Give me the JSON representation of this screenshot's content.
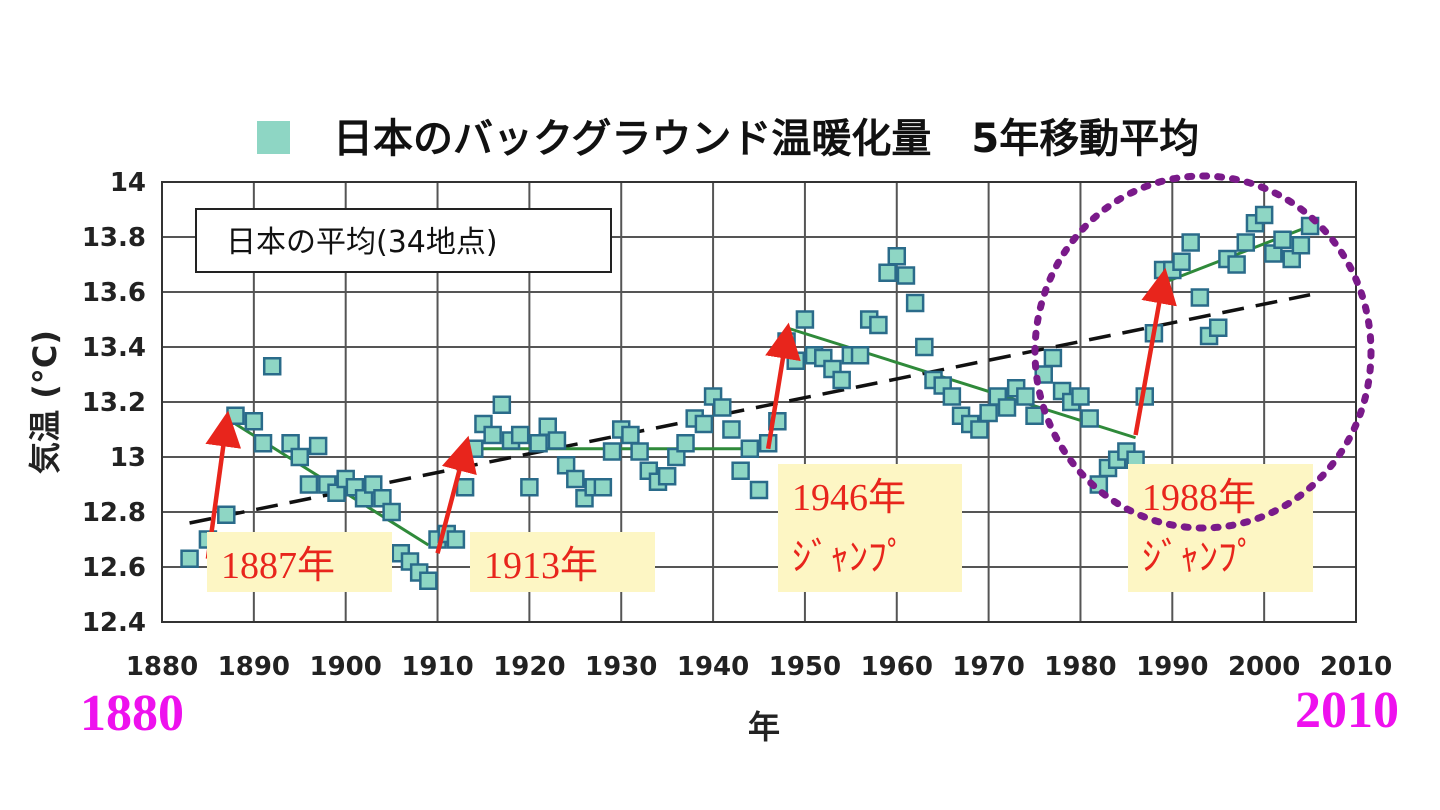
{
  "chart_data": {
    "type": "scatter",
    "title": "日本のバックグラウンド温暖化量　5年移動平均",
    "xlabel": "年",
    "ylabel": "気温 (°C)",
    "xlim": [
      1880,
      2010
    ],
    "ylim": [
      12.4,
      14.0
    ],
    "x_ticks": [
      "1880",
      "1890",
      "1900",
      "1910",
      "1920",
      "1930",
      "1940",
      "1950",
      "1960",
      "1970",
      "1980",
      "1990",
      "2000",
      "2010"
    ],
    "y_ticks": [
      "12.4",
      "12.6",
      "12.8",
      "13",
      "13.2",
      "13.4",
      "13.6",
      "13.8",
      "14"
    ],
    "grid": true,
    "legend_position": "top",
    "marker_color": "#8ed6c4",
    "marker_edge_color": "#2a6b8a",
    "inset_label": "日本の平均(34地点)",
    "left_year_label": "1880",
    "right_year_label": "2010",
    "series": [
      {
        "points": [
          [
            1883,
            12.63
          ],
          [
            1885,
            12.7
          ],
          [
            1887,
            12.79
          ],
          [
            1888,
            13.15
          ],
          [
            1890,
            13.13
          ],
          [
            1891,
            13.05
          ],
          [
            1892,
            13.33
          ],
          [
            1894,
            13.05
          ],
          [
            1895,
            13.0
          ],
          [
            1896,
            12.9
          ],
          [
            1897,
            13.04
          ],
          [
            1898,
            12.9
          ],
          [
            1899,
            12.87
          ],
          [
            1900,
            12.92
          ],
          [
            1901,
            12.89
          ],
          [
            1902,
            12.85
          ],
          [
            1903,
            12.9
          ],
          [
            1904,
            12.85
          ],
          [
            1905,
            12.8
          ],
          [
            1906,
            12.65
          ],
          [
            1907,
            12.62
          ],
          [
            1908,
            12.58
          ],
          [
            1909,
            12.55
          ],
          [
            1910,
            12.7
          ],
          [
            1911,
            12.72
          ],
          [
            1912,
            12.7
          ],
          [
            1913,
            12.89
          ],
          [
            1914,
            13.03
          ],
          [
            1915,
            13.12
          ],
          [
            1916,
            13.08
          ],
          [
            1917,
            13.19
          ],
          [
            1918,
            13.06
          ],
          [
            1919,
            13.08
          ],
          [
            1920,
            12.89
          ],
          [
            1921,
            13.05
          ],
          [
            1922,
            13.11
          ],
          [
            1923,
            13.06
          ],
          [
            1924,
            12.97
          ],
          [
            1925,
            12.92
          ],
          [
            1926,
            12.85
          ],
          [
            1927,
            12.89
          ],
          [
            1928,
            12.89
          ],
          [
            1929,
            13.02
          ],
          [
            1930,
            13.1
          ],
          [
            1931,
            13.08
          ],
          [
            1932,
            13.02
          ],
          [
            1933,
            12.95
          ],
          [
            1934,
            12.91
          ],
          [
            1935,
            12.93
          ],
          [
            1936,
            13.0
          ],
          [
            1937,
            13.05
          ],
          [
            1938,
            13.14
          ],
          [
            1939,
            13.12
          ],
          [
            1940,
            13.22
          ],
          [
            1941,
            13.18
          ],
          [
            1942,
            13.1
          ],
          [
            1943,
            12.95
          ],
          [
            1944,
            13.03
          ],
          [
            1945,
            12.88
          ],
          [
            1946,
            13.05
          ],
          [
            1947,
            13.13
          ],
          [
            1948,
            13.42
          ],
          [
            1949,
            13.35
          ],
          [
            1950,
            13.5
          ],
          [
            1951,
            13.37
          ],
          [
            1952,
            13.36
          ],
          [
            1953,
            13.32
          ],
          [
            1954,
            13.28
          ],
          [
            1955,
            13.37
          ],
          [
            1956,
            13.37
          ],
          [
            1957,
            13.5
          ],
          [
            1958,
            13.48
          ],
          [
            1959,
            13.67
          ],
          [
            1960,
            13.73
          ],
          [
            1961,
            13.66
          ],
          [
            1962,
            13.56
          ],
          [
            1963,
            13.4
          ],
          [
            1964,
            13.28
          ],
          [
            1965,
            13.26
          ],
          [
            1966,
            13.22
          ],
          [
            1967,
            13.15
          ],
          [
            1968,
            13.12
          ],
          [
            1969,
            13.1
          ],
          [
            1970,
            13.16
          ],
          [
            1971,
            13.22
          ],
          [
            1972,
            13.18
          ],
          [
            1973,
            13.25
          ],
          [
            1974,
            13.22
          ],
          [
            1975,
            13.15
          ],
          [
            1976,
            13.3
          ],
          [
            1977,
            13.36
          ],
          [
            1978,
            13.24
          ],
          [
            1979,
            13.2
          ],
          [
            1980,
            13.22
          ],
          [
            1981,
            13.14
          ],
          [
            1982,
            12.9
          ],
          [
            1983,
            12.96
          ],
          [
            1984,
            12.99
          ],
          [
            1985,
            13.02
          ],
          [
            1986,
            12.99
          ],
          [
            1987,
            13.22
          ],
          [
            1988,
            13.45
          ],
          [
            1989,
            13.68
          ],
          [
            1990,
            13.68
          ],
          [
            1991,
            13.71
          ],
          [
            1992,
            13.78
          ],
          [
            1993,
            13.58
          ],
          [
            1994,
            13.44
          ],
          [
            1995,
            13.47
          ],
          [
            1996,
            13.72
          ],
          [
            1997,
            13.7
          ],
          [
            1998,
            13.78
          ],
          [
            1999,
            13.85
          ],
          [
            2000,
            13.88
          ],
          [
            2001,
            13.74
          ],
          [
            2002,
            13.79
          ],
          [
            2003,
            13.72
          ],
          [
            2004,
            13.77
          ],
          [
            2005,
            13.84
          ]
        ]
      }
    ],
    "trend_line": {
      "style": "dashed",
      "color": "#111111",
      "from": [
        1883,
        12.76
      ],
      "to": [
        2005,
        13.59
      ]
    },
    "segment_lines": {
      "color": "#2f8a3a",
      "segments": [
        {
          "from": [
            1888,
            13.12
          ],
          "to": [
            1909,
            12.68
          ]
        },
        {
          "from": [
            1913,
            13.03
          ],
          "to": [
            1946,
            13.03
          ]
        },
        {
          "from": [
            1948,
            13.47
          ],
          "to": [
            1986,
            13.07
          ]
        },
        {
          "from": [
            1988,
            13.62
          ],
          "to": [
            2005,
            13.84
          ]
        }
      ]
    },
    "jumps": [
      {
        "from": [
          1885,
          12.63
        ],
        "to": [
          1887,
          13.12
        ],
        "label_lines": [
          "1887年"
        ]
      },
      {
        "from": [
          1910,
          12.65
        ],
        "to": [
          1913,
          13.03
        ],
        "label_lines": [
          "1913年"
        ]
      },
      {
        "from": [
          1946,
          13.03
        ],
        "to": [
          1948,
          13.44
        ],
        "label_lines": [
          "1946年",
          "ｼﾞｬﾝﾌﾟ"
        ]
      },
      {
        "from": [
          1986,
          13.08
        ],
        "to": [
          1989,
          13.64
        ],
        "label_lines": [
          "1988年",
          "ｼﾞｬﾝﾌﾟ"
        ]
      }
    ],
    "arrow_color": "#e8251c",
    "label_bg_color": "#fdf6c4",
    "annotation_text_color": "#e8251c",
    "highlight_circle": {
      "style": "dotted",
      "color": "#7a1a8a"
    }
  }
}
